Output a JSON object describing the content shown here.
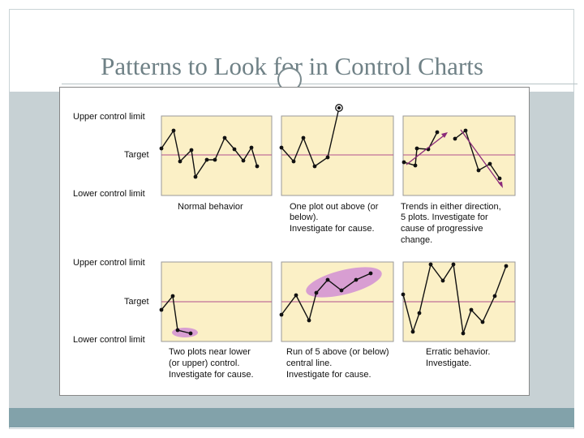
{
  "slide": {
    "title": "Patterns to Look for in Control Charts"
  },
  "figure": {
    "axis_labels": {
      "upper": "Upper control limit",
      "target": "Target",
      "lower": "Lower control limit"
    },
    "panels": [
      {
        "id": "normal",
        "caption": [
          "Normal behavior"
        ]
      },
      {
        "id": "one-out",
        "caption": [
          "One plot out above (or",
          "below).",
          "Investigate for cause."
        ]
      },
      {
        "id": "trends",
        "caption": [
          "Trends in either direction,",
          "5 plots. Investigate for",
          "cause of progressive",
          "change."
        ]
      },
      {
        "id": "two-near",
        "caption": [
          "Two plots near lower",
          "(or upper) control.",
          "Investigate for cause."
        ]
      },
      {
        "id": "run-five",
        "caption": [
          "Run of 5 above (or below)",
          "central line.",
          "Investigate for cause."
        ]
      },
      {
        "id": "erratic",
        "caption": [
          "Erratic behavior.",
          "Investigate."
        ]
      }
    ],
    "colors": {
      "panel_fill": "#fbf0c6",
      "target_line": "#b0508f",
      "highlight": "#d89ed2",
      "arrow": "#8b2a7a"
    }
  }
}
